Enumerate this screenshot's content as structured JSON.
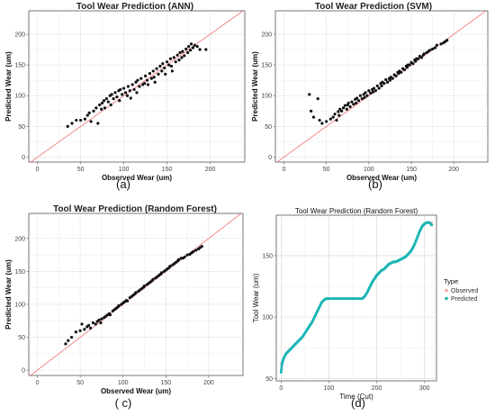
{
  "chart_data": [
    {
      "id": "a",
      "type": "scatter",
      "title": "Tool Wear Prediction (ANN)",
      "xlabel": "Observed Wear (um)",
      "ylabel": "Predicted Wear (um)",
      "xlim": [
        -10,
        240
      ],
      "ylim": [
        -8,
        238
      ],
      "xticks": [
        0,
        50,
        100,
        150,
        200
      ],
      "yticks": [
        0,
        50,
        100,
        150,
        200
      ],
      "grid": true,
      "reference_line": "y=x",
      "reference_line_color": "#f08080",
      "point_color": "#111111",
      "caption": "(a)",
      "points": [
        [
          35,
          50
        ],
        [
          40,
          55
        ],
        [
          45,
          60
        ],
        [
          50,
          60
        ],
        [
          55,
          62
        ],
        [
          58,
          68
        ],
        [
          60,
          72
        ],
        [
          62,
          58
        ],
        [
          65,
          75
        ],
        [
          68,
          80
        ],
        [
          70,
          55
        ],
        [
          72,
          85
        ],
        [
          74,
          78
        ],
        [
          75,
          88
        ],
        [
          77,
          92
        ],
        [
          78,
          80
        ],
        [
          80,
          95
        ],
        [
          82,
          90
        ],
        [
          84,
          100
        ],
        [
          85,
          85
        ],
        [
          86,
          102
        ],
        [
          88,
          95
        ],
        [
          90,
          105
        ],
        [
          92,
          98
        ],
        [
          94,
          108
        ],
        [
          95,
          92
        ],
        [
          96,
          110
        ],
        [
          98,
          102
        ],
        [
          100,
          112
        ],
        [
          102,
          105
        ],
        [
          104,
          100
        ],
        [
          105,
          115
        ],
        [
          107,
          108
        ],
        [
          108,
          96
        ],
        [
          110,
          118
        ],
        [
          112,
          110
        ],
        [
          114,
          122
        ],
        [
          115,
          105
        ],
        [
          116,
          125
        ],
        [
          118,
          115
        ],
        [
          120,
          128
        ],
        [
          122,
          118
        ],
        [
          124,
          120
        ],
        [
          125,
          132
        ],
        [
          127,
          125
        ],
        [
          128,
          118
        ],
        [
          130,
          136
        ],
        [
          132,
          128
        ],
        [
          134,
          140
        ],
        [
          135,
          130
        ],
        [
          136,
          122
        ],
        [
          138,
          144
        ],
        [
          140,
          135
        ],
        [
          142,
          148
        ],
        [
          144,
          140
        ],
        [
          145,
          152
        ],
        [
          147,
          145
        ],
        [
          148,
          135
        ],
        [
          150,
          155
        ],
        [
          152,
          150
        ],
        [
          154,
          160
        ],
        [
          155,
          148
        ],
        [
          156,
          140
        ],
        [
          158,
          162
        ],
        [
          160,
          155
        ],
        [
          162,
          166
        ],
        [
          164,
          158
        ],
        [
          165,
          170
        ],
        [
          167,
          162
        ],
        [
          168,
          172
        ],
        [
          170,
          165
        ],
        [
          172,
          176
        ],
        [
          174,
          170
        ],
        [
          175,
          180
        ],
        [
          177,
          174
        ],
        [
          178,
          184
        ],
        [
          180,
          178
        ],
        [
          182,
          182
        ],
        [
          185,
          180
        ],
        [
          188,
          175
        ],
        [
          195,
          175
        ]
      ]
    },
    {
      "id": "b",
      "type": "scatter",
      "title": "Tool Wear Prediction (SVM)",
      "xlabel": "Observed Wear (um)",
      "ylabel": "Predicted Wear (um)",
      "xlim": [
        -10,
        240
      ],
      "ylim": [
        -8,
        238
      ],
      "xticks": [
        0,
        50,
        100,
        150,
        200
      ],
      "yticks": [
        0,
        50,
        100,
        150,
        200
      ],
      "grid": true,
      "reference_line": "y=x",
      "reference_line_color": "#f08080",
      "point_color": "#111111",
      "caption": "(b)",
      "points": [
        [
          30,
          102
        ],
        [
          32,
          75
        ],
        [
          35,
          65
        ],
        [
          40,
          95
        ],
        [
          42,
          60
        ],
        [
          45,
          55
        ],
        [
          50,
          58
        ],
        [
          55,
          62
        ],
        [
          58,
          65
        ],
        [
          60,
          70
        ],
        [
          62,
          60
        ],
        [
          64,
          74
        ],
        [
          65,
          68
        ],
        [
          66,
          78
        ],
        [
          68,
          75
        ],
        [
          70,
          80
        ],
        [
          72,
          84
        ],
        [
          74,
          78
        ],
        [
          75,
          85
        ],
        [
          76,
          88
        ],
        [
          78,
          82
        ],
        [
          80,
          90
        ],
        [
          82,
          86
        ],
        [
          84,
          94
        ],
        [
          85,
          88
        ],
        [
          86,
          96
        ],
        [
          88,
          92
        ],
        [
          90,
          100
        ],
        [
          92,
          95
        ],
        [
          94,
          102
        ],
        [
          95,
          97
        ],
        [
          96,
          105
        ],
        [
          98,
          100
        ],
        [
          100,
          108
        ],
        [
          102,
          104
        ],
        [
          104,
          110
        ],
        [
          105,
          106
        ],
        [
          106,
          112
        ],
        [
          108,
          108
        ],
        [
          110,
          116
        ],
        [
          112,
          112
        ],
        [
          114,
          120
        ],
        [
          115,
          116
        ],
        [
          116,
          122
        ],
        [
          118,
          120
        ],
        [
          120,
          126
        ],
        [
          122,
          122
        ],
        [
          124,
          128
        ],
        [
          125,
          125
        ],
        [
          126,
          130
        ],
        [
          128,
          128
        ],
        [
          130,
          134
        ],
        [
          132,
          132
        ],
        [
          134,
          138
        ],
        [
          135,
          136
        ],
        [
          136,
          140
        ],
        [
          138,
          138
        ],
        [
          140,
          144
        ],
        [
          142,
          142
        ],
        [
          144,
          148
        ],
        [
          145,
          146
        ],
        [
          146,
          150
        ],
        [
          148,
          150
        ],
        [
          150,
          154
        ],
        [
          152,
          152
        ],
        [
          154,
          158
        ],
        [
          155,
          156
        ],
        [
          156,
          160
        ],
        [
          158,
          160
        ],
        [
          160,
          164
        ],
        [
          162,
          162
        ],
        [
          164,
          166
        ],
        [
          165,
          168
        ],
        [
          168,
          170
        ],
        [
          170,
          172
        ],
        [
          172,
          174
        ],
        [
          175,
          176
        ],
        [
          178,
          178
        ],
        [
          180,
          182
        ],
        [
          185,
          184
        ],
        [
          188,
          186
        ],
        [
          190,
          188
        ],
        [
          192,
          190
        ]
      ]
    },
    {
      "id": "c",
      "type": "scatter",
      "title": "Tool Wear Prediction (Random Forest)",
      "xlabel": "Observed Wear (um)",
      "ylabel": "Predicted Wear (um)",
      "xlim": [
        -10,
        240
      ],
      "ylim": [
        -8,
        238
      ],
      "xticks": [
        0,
        50,
        100,
        150,
        200
      ],
      "yticks": [
        0,
        50,
        100,
        150,
        200
      ],
      "grid": true,
      "reference_line": "y=x",
      "reference_line_color": "#f08080",
      "point_color": "#111111",
      "caption": "( c)",
      "points": [
        [
          33,
          40
        ],
        [
          36,
          45
        ],
        [
          40,
          50
        ],
        [
          45,
          58
        ],
        [
          50,
          60
        ],
        [
          52,
          70
        ],
        [
          55,
          62
        ],
        [
          58,
          66
        ],
        [
          60,
          68
        ],
        [
          62,
          64
        ],
        [
          65,
          72
        ],
        [
          68,
          70
        ],
        [
          70,
          74
        ],
        [
          72,
          76
        ],
        [
          74,
          72
        ],
        [
          75,
          78
        ],
        [
          78,
          80
        ],
        [
          80,
          82
        ],
        [
          82,
          84
        ],
        [
          84,
          86
        ],
        [
          85,
          84
        ],
        [
          88,
          90
        ],
        [
          90,
          92
        ],
        [
          92,
          94
        ],
        [
          94,
          96
        ],
        [
          95,
          98
        ],
        [
          98,
          100
        ],
        [
          100,
          102
        ],
        [
          102,
          104
        ],
        [
          104,
          106
        ],
        [
          105,
          105
        ],
        [
          108,
          110
        ],
        [
          110,
          112
        ],
        [
          112,
          114
        ],
        [
          114,
          116
        ],
        [
          115,
          118
        ],
        [
          118,
          120
        ],
        [
          120,
          122
        ],
        [
          122,
          124
        ],
        [
          124,
          126
        ],
        [
          125,
          128
        ],
        [
          128,
          130
        ],
        [
          130,
          132
        ],
        [
          132,
          134
        ],
        [
          134,
          136
        ],
        [
          135,
          138
        ],
        [
          138,
          140
        ],
        [
          140,
          142
        ],
        [
          142,
          144
        ],
        [
          144,
          146
        ],
        [
          145,
          148
        ],
        [
          148,
          150
        ],
        [
          150,
          152
        ],
        [
          152,
          154
        ],
        [
          154,
          156
        ],
        [
          155,
          158
        ],
        [
          158,
          160
        ],
        [
          160,
          162
        ],
        [
          162,
          164
        ],
        [
          164,
          166
        ],
        [
          165,
          168
        ],
        [
          168,
          170
        ],
        [
          170,
          170
        ],
        [
          172,
          172
        ],
        [
          175,
          175
        ],
        [
          178,
          176
        ],
        [
          180,
          178
        ],
        [
          182,
          180
        ],
        [
          185,
          182
        ],
        [
          188,
          184
        ],
        [
          190,
          186
        ],
        [
          192,
          188
        ]
      ]
    },
    {
      "id": "d",
      "type": "line",
      "title": "Tool Wear Prediction (Random Forest)",
      "xlabel": "Time (Cut)",
      "ylabel": "Tool Wear (um)",
      "xlim": [
        -10,
        325
      ],
      "ylim": [
        48,
        183
      ],
      "xticks": [
        0,
        100,
        200,
        300
      ],
      "yticks": [
        50,
        100,
        150
      ],
      "grid": true,
      "legend_title": "Type",
      "legend_position": "right",
      "caption": "(d)",
      "series": [
        {
          "name": "Observed",
          "color": "#f4a4a4",
          "x": [
            0,
            5,
            10,
            15,
            20,
            25,
            30,
            35,
            40,
            45,
            50,
            55,
            60,
            65,
            70,
            75,
            80,
            85,
            90,
            95,
            100,
            110,
            120,
            130,
            140,
            150,
            160,
            170,
            175,
            180,
            185,
            190,
            195,
            200,
            205,
            210,
            215,
            220,
            225,
            230,
            235,
            240,
            245,
            250,
            255,
            260,
            265,
            270,
            275,
            280,
            285,
            290,
            295,
            300,
            305,
            310,
            315
          ],
          "y": [
            62,
            66,
            70,
            72,
            74,
            76,
            78,
            80,
            82,
            84,
            87,
            90,
            93,
            96,
            100,
            104,
            108,
            112,
            114,
            115,
            115,
            115,
            115,
            115,
            115,
            115,
            115,
            115,
            117,
            120,
            124,
            128,
            131,
            134,
            136,
            138,
            139,
            141,
            143,
            144,
            145,
            145,
            146,
            147,
            148,
            149,
            151,
            153,
            156,
            160,
            165,
            170,
            174,
            176,
            177,
            177,
            177
          ]
        },
        {
          "name": "Predicted",
          "color": "#1bb5b5",
          "x": [
            0,
            2,
            5,
            10,
            15,
            20,
            25,
            30,
            35,
            40,
            45,
            50,
            55,
            60,
            65,
            70,
            75,
            80,
            85,
            90,
            95,
            100,
            110,
            120,
            130,
            140,
            150,
            160,
            170,
            175,
            180,
            185,
            190,
            195,
            200,
            205,
            210,
            215,
            220,
            225,
            230,
            235,
            240,
            245,
            250,
            255,
            260,
            265,
            270,
            275,
            280,
            285,
            290,
            295,
            300,
            305,
            310,
            315
          ],
          "y": [
            55,
            62,
            66,
            70,
            72,
            74,
            76,
            78,
            80,
            82,
            84,
            87,
            90,
            93,
            96,
            100,
            104,
            108,
            112,
            114,
            115,
            115,
            115,
            115,
            115,
            115,
            115,
            115,
            115,
            117,
            120,
            124,
            128,
            131,
            134,
            136,
            138,
            139,
            141,
            143,
            144,
            145,
            145,
            146,
            147,
            148,
            149,
            151,
            153,
            156,
            160,
            165,
            170,
            174,
            176,
            177,
            177,
            175
          ]
        }
      ]
    }
  ]
}
